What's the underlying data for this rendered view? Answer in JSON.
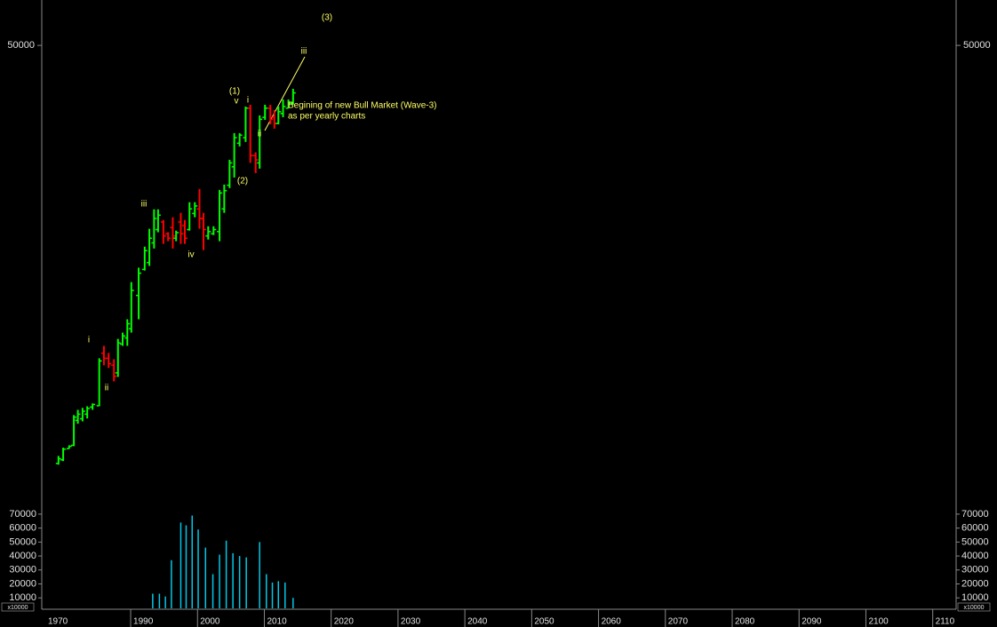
{
  "chart_data": {
    "type": "ohlc",
    "log_scale": true,
    "ylim": [
      60,
      97000
    ],
    "yticks": [
      50000
    ],
    "xlim": [
      1976.7,
      2113.5
    ],
    "xticks": [
      1970,
      1990,
      2000,
      2010,
      2020,
      2030,
      2040,
      2050,
      2060,
      2070,
      2080,
      2090,
      2100,
      2110
    ],
    "up_color": "#00ff00",
    "down_color": "#ff0000",
    "x": [
      1979.2,
      1979.9,
      1980.8,
      1981.5,
      1982.1,
      1982.8,
      1983.5,
      1984.3,
      1985.3,
      1986.0,
      1986.7,
      1987.5,
      1988.1,
      1988.8,
      1989.5,
      1990.1,
      1991.2,
      1992.1,
      1992.8,
      1993.5,
      1994.1,
      1994.9,
      1995.6,
      1996.3,
      1996.8,
      1997.5,
      1998.1,
      1998.8,
      1999.6,
      2000.3,
      2000.9,
      2001.6,
      2002.4,
      2003.3,
      2004.0,
      2004.8,
      2005.5,
      2006.3,
      2007.2,
      2007.9,
      2008.7,
      2009.3,
      2010.1,
      2010.9,
      2011.5,
      2012.1,
      2012.8,
      2013.6,
      2014.3
    ],
    "open": [
      112,
      118,
      139,
      146,
      210,
      215,
      230,
      255,
      260,
      560,
      520,
      470,
      420,
      640,
      700,
      800,
      1300,
      1900,
      2100,
      2800,
      3400,
      3800,
      3200,
      3500,
      3000,
      3800,
      3600,
      3400,
      4300,
      4600,
      4000,
      3100,
      3200,
      3300,
      4600,
      6500,
      8500,
      12000,
      13000,
      20000,
      10000,
      9000,
      17500,
      20000,
      17500,
      16000,
      18500,
      20000,
      21500
    ],
    "high": [
      125,
      141,
      146,
      227,
      245,
      252,
      258,
      269,
      520,
      623,
      562,
      513,
      690,
      756,
      919,
      1580,
      1950,
      2650,
      3440,
      4570,
      4570,
      3910,
      3270,
      4070,
      3350,
      4340,
      3910,
      5070,
      5070,
      6150,
      4340,
      3570,
      3570,
      6070,
      6560,
      9420,
      13900,
      13900,
      20480,
      21020,
      10500,
      18000,
      21020,
      21020,
      19450,
      20480,
      22710,
      22710,
      26540
    ],
    "low": [
      110,
      116,
      139,
      144,
      200,
      207,
      216,
      245,
      258,
      469,
      451,
      371,
      396,
      623,
      623,
      756,
      919,
      1870,
      2000,
      2580,
      3270,
      2760,
      2870,
      2580,
      2870,
      2760,
      2760,
      3350,
      4070,
      3440,
      2520,
      2940,
      3140,
      2870,
      4340,
      6230,
      7270,
      11450,
      12220,
      9000,
      7760,
      8280,
      16870,
      15810,
      14820,
      15810,
      17540,
      19950,
      21020
    ],
    "close": [
      120,
      138,
      144,
      220,
      230,
      240,
      250,
      265,
      500,
      520,
      480,
      400,
      650,
      720,
      860,
      1400,
      1800,
      2500,
      3000,
      4000,
      4200,
      3100,
      3000,
      3100,
      3250,
      3200,
      3000,
      4600,
      4800,
      4000,
      3400,
      3300,
      3400,
      5800,
      6000,
      9000,
      13000,
      13500,
      20000,
      10000,
      9400,
      17000,
      20000,
      17000,
      16000,
      19000,
      20500,
      21500,
      25000
    ],
    "annotations": [
      "(3)",
      "iii",
      "(1)",
      "v",
      "i",
      "ii",
      "(2)",
      "Begining of new Bull Market (Wave-3)",
      "as per yearly charts",
      "iii",
      "iv",
      "i",
      "ii"
    ],
    "annotation_color": "#ffff66",
    "volume": {
      "type": "bar",
      "color": "#00c8e8",
      "ylim": [
        2500,
        74400
      ],
      "yticks": [
        10000,
        20000,
        30000,
        40000,
        50000,
        60000,
        70000
      ],
      "unit_label": "x10000",
      "x": [
        1993.3,
        1994.3,
        1995.2,
        1996.1,
        1997.5,
        1998.3,
        1999.2,
        2000.1,
        2001.2,
        2002.3,
        2003.3,
        2004.3,
        2005.3,
        2006.3,
        2007.3,
        2009.3,
        2010.3,
        2011.2,
        2012.1,
        2013.1,
        2014.3
      ],
      "values": [
        13000,
        13000,
        11000,
        37000,
        64000,
        62000,
        69000,
        59000,
        46000,
        27000,
        41000,
        51000,
        42000,
        40000,
        39000,
        50000,
        27000,
        21000,
        22000,
        21000,
        10000
      ]
    }
  }
}
